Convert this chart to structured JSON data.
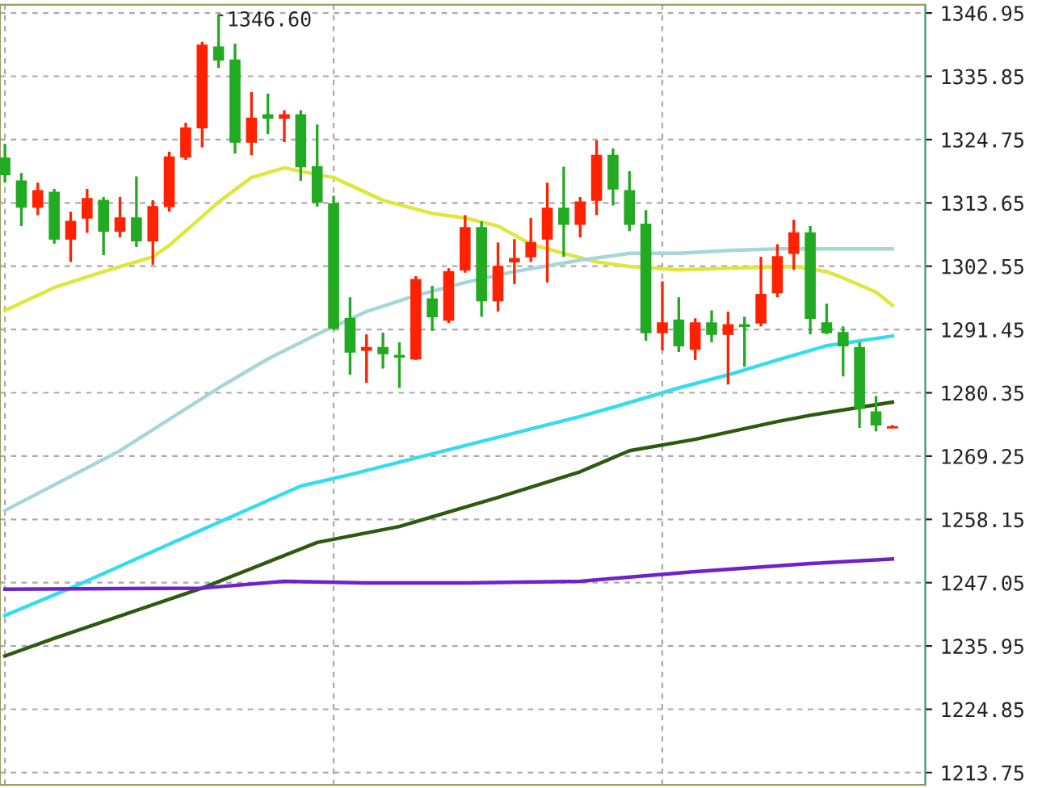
{
  "chart_data": {
    "type": "candlestick",
    "categories": [
      null,
      null,
      null,
      null,
      null,
      null,
      null,
      null,
      null,
      null,
      null,
      null,
      null,
      null,
      null,
      null,
      null,
      null,
      null,
      null,
      null,
      null,
      null,
      null,
      null,
      null,
      null,
      null,
      null,
      null,
      null,
      null,
      null,
      null,
      null,
      null,
      null,
      null,
      null,
      null,
      null,
      null,
      null,
      null,
      null,
      null,
      null,
      null,
      null,
      null,
      null,
      null,
      null,
      null,
      null
    ],
    "ohlc": [
      [
        1321.5,
        1324.0,
        1317.2,
        1318.6
      ],
      [
        1317.5,
        1318.9,
        1309.6,
        1312.9
      ],
      [
        1312.9,
        1317.2,
        1311.5,
        1315.8
      ],
      [
        1315.5,
        1316.1,
        1306.5,
        1307.3
      ],
      [
        1307.3,
        1312.1,
        1303.3,
        1310.4
      ],
      [
        1311.0,
        1316.1,
        1308.4,
        1314.4
      ],
      [
        1314.1,
        1314.7,
        1304.5,
        1308.7
      ],
      [
        1308.7,
        1314.7,
        1307.6,
        1311.0
      ],
      [
        1311.0,
        1318.3,
        1305.9,
        1307.0
      ],
      [
        1307.0,
        1314.1,
        1302.8,
        1313.0
      ],
      [
        1313.0,
        1322.6,
        1312.1,
        1321.7
      ],
      [
        1321.7,
        1327.7,
        1321.2,
        1326.8
      ],
      [
        1326.8,
        1341.9,
        1323.4,
        1341.3
      ],
      [
        1341.0,
        1346.6,
        1337.3,
        1338.7
      ],
      [
        1338.7,
        1341.6,
        1322.3,
        1324.3
      ],
      [
        1324.3,
        1333.1,
        1322.0,
        1328.5
      ],
      [
        1329.1,
        1332.8,
        1325.7,
        1328.5
      ],
      [
        1328.5,
        1329.9,
        1324.3,
        1329.1
      ],
      [
        1329.1,
        1329.9,
        1317.5,
        1320.0
      ],
      [
        1320.0,
        1327.4,
        1313.0,
        1313.8
      ],
      [
        1313.5,
        1314.9,
        1291.4,
        1291.7
      ],
      [
        1293.4,
        1297.1,
        1283.5,
        1287.5
      ],
      [
        1287.8,
        1290.6,
        1282.1,
        1288.3
      ],
      [
        1288.3,
        1290.9,
        1284.6,
        1287.2
      ],
      [
        1286.9,
        1289.2,
        1281.2,
        1286.6
      ],
      [
        1286.3,
        1300.8,
        1286.1,
        1300.2
      ],
      [
        1296.8,
        1299.1,
        1291.2,
        1293.7
      ],
      [
        1293.1,
        1302.2,
        1292.6,
        1301.6
      ],
      [
        1301.9,
        1311.5,
        1301.4,
        1309.3
      ],
      [
        1309.3,
        1310.4,
        1293.7,
        1296.5
      ],
      [
        1296.5,
        1306.7,
        1294.6,
        1302.5
      ],
      [
        1303.3,
        1307.3,
        1299.4,
        1303.9
      ],
      [
        1304.2,
        1311.0,
        1303.3,
        1306.7
      ],
      [
        1307.3,
        1317.2,
        1299.7,
        1312.7
      ],
      [
        1312.7,
        1320.0,
        1304.2,
        1309.9
      ],
      [
        1309.9,
        1314.7,
        1307.6,
        1313.8
      ],
      [
        1314.1,
        1324.6,
        1311.5,
        1322.0
      ],
      [
        1322.0,
        1323.2,
        1313.2,
        1316.1
      ],
      [
        1315.8,
        1319.2,
        1308.7,
        1309.9
      ],
      [
        1309.9,
        1312.4,
        1289.5,
        1290.9
      ],
      [
        1290.9,
        1299.9,
        1287.8,
        1292.6
      ],
      [
        1293.1,
        1297.1,
        1287.5,
        1288.6
      ],
      [
        1288.0,
        1293.4,
        1286.1,
        1292.6
      ],
      [
        1292.6,
        1294.8,
        1289.2,
        1290.6
      ],
      [
        1290.6,
        1294.6,
        1281.8,
        1292.3
      ],
      [
        1292.3,
        1293.7,
        1284.9,
        1292.0
      ],
      [
        1292.6,
        1304.2,
        1292.0,
        1297.6
      ],
      [
        1297.9,
        1306.4,
        1297.1,
        1304.2
      ],
      [
        1304.8,
        1310.7,
        1301.9,
        1308.4
      ],
      [
        1308.4,
        1309.6,
        1290.6,
        1293.4
      ],
      [
        1292.6,
        1296.0,
        1290.6,
        1290.9
      ],
      [
        1290.9,
        1292.0,
        1283.2,
        1288.6
      ],
      [
        1288.3,
        1289.2,
        1274.2,
        1277.6
      ],
      [
        1277.0,
        1279.8,
        1273.6,
        1274.7
      ],
      [
        1274.2,
        1274.7,
        1274.2,
        1274.4
      ]
    ],
    "colors": [
      "#22aa22",
      "#22aa22",
      "#ff2200",
      "#22aa22",
      "#ff2200",
      "#ff2200",
      "#22aa22",
      "#ff2200",
      "#22aa22",
      "#ff2200",
      "#ff2200",
      "#ff2200",
      "#ff2200",
      "#22aa22",
      "#22aa22",
      "#ff2200",
      "#22aa22",
      "#ff2200",
      "#22aa22",
      "#22aa22",
      "#22aa22",
      "#22aa22",
      "#ff2200",
      "#22aa22",
      "#22aa22",
      "#ff2200",
      "#22aa22",
      "#ff2200",
      "#ff2200",
      "#22aa22",
      "#ff2200",
      "#ff2200",
      "#ff2200",
      "#ff2200",
      "#22aa22",
      "#ff2200",
      "#ff2200",
      "#22aa22",
      "#22aa22",
      "#22aa22",
      "#ff2200",
      "#22aa22",
      "#ff2200",
      "#22aa22",
      "#ff2200",
      "#22aa22",
      "#ff2200",
      "#ff2200",
      "#ff2200",
      "#22aa22",
      "#22aa22",
      "#22aa22",
      "#22aa22",
      "#22aa22",
      "#ff2200"
    ],
    "series": [
      {
        "type": "line",
        "color": "#dfe63c",
        "values": [
          1294.8,
          null,
          null,
          1298.8,
          null,
          null,
          1301.6,
          null,
          null,
          1304.2,
          1306.2,
          null,
          null,
          1313.8,
          null,
          1318.1,
          null,
          1319.8,
          null,
          1318.6,
          1318.1,
          null,
          null,
          1314.1,
          null,
          null,
          1311.8,
          null,
          1311.0,
          null,
          1309.6,
          null,
          1306.4,
          null,
          1304.8,
          null,
          1303.3,
          null,
          1302.5,
          null,
          null,
          1301.9,
          null,
          null,
          1302.2,
          null,
          null,
          null,
          1302.5,
          null,
          1301.6,
          1300.5,
          null,
          1298.0,
          1295.7
        ]
      },
      {
        "type": "line",
        "color": "#a6d6da",
        "values": [
          1259.7,
          null,
          null,
          null,
          null,
          null,
          null,
          1270.2,
          null,
          null,
          null,
          null,
          null,
          1281.2,
          null,
          null,
          1286.3,
          null,
          null,
          1290.6,
          null,
          null,
          1294.6,
          null,
          null,
          1297.4,
          null,
          null,
          1299.7,
          null,
          null,
          1301.6,
          null,
          null,
          null,
          1303.6,
          null,
          null,
          1304.8,
          null,
          null,
          1304.8,
          null,
          null,
          1305.3,
          null,
          null,
          1305.6,
          null,
          null,
          null,
          null,
          null,
          null,
          1305.6
        ]
      },
      {
        "type": "line",
        "color": "#33dded",
        "values": [
          1241.3,
          null,
          null,
          null,
          1246.1,
          null,
          null,
          null,
          null,
          null,
          1253.8,
          null,
          null,
          null,
          null,
          null,
          null,
          null,
          1264.0,
          null,
          null,
          1266.0,
          null,
          null,
          null,
          null,
          null,
          null,
          1271.1,
          null,
          null,
          null,
          null,
          null,
          null,
          1276.2,
          null,
          1277.8,
          null,
          null,
          null,
          1281.2,
          null,
          null,
          1283.5,
          null,
          null,
          1286.1,
          null,
          null,
          1288.6,
          null,
          null,
          null,
          1290.3
        ]
      },
      {
        "type": "line",
        "color": "#2e5a10",
        "values": [
          1234.2,
          null,
          null,
          1237.3,
          null,
          null,
          null,
          null,
          null,
          null,
          null,
          null,
          1246.1,
          null,
          null,
          null,
          null,
          null,
          null,
          1254.1,
          null,
          null,
          null,
          null,
          1256.9,
          null,
          null,
          null,
          null,
          null,
          1262.0,
          null,
          null,
          null,
          null,
          1266.5,
          null,
          null,
          1270.2,
          null,
          null,
          null,
          1272.2,
          null,
          null,
          null,
          null,
          1275.3,
          null,
          1276.4,
          null,
          null,
          1277.8,
          null,
          1278.7
        ]
      },
      {
        "type": "line",
        "color": "#7020cc",
        "values": [
          1245.9,
          null,
          null,
          null,
          null,
          null,
          null,
          null,
          null,
          null,
          null,
          null,
          1246.1,
          null,
          null,
          null,
          null,
          1247.3,
          null,
          null,
          null,
          null,
          1247.0,
          null,
          null,
          null,
          null,
          null,
          1247.0,
          null,
          null,
          null,
          null,
          null,
          null,
          1247.3,
          null,
          null,
          null,
          null,
          null,
          null,
          1249.0,
          null,
          null,
          null,
          null,
          null,
          null,
          1250.4,
          null,
          null,
          null,
          null,
          1251.2
        ]
      }
    ],
    "ylim": [
      1211.6,
      1348.4
    ],
    "yticks": [
      1213.75,
      1224.85,
      1235.95,
      1247.05,
      1258.15,
      1269.25,
      1280.35,
      1291.45,
      1302.55,
      1313.65,
      1324.75,
      1335.85,
      1346.95
    ],
    "annotations": [
      "1346.60"
    ],
    "grid": true,
    "legend": false,
    "tick_labels": "y"
  }
}
